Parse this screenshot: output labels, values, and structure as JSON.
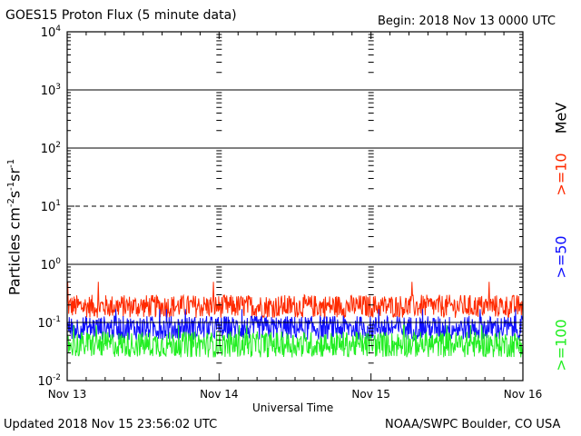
{
  "header": {
    "title": "GOES15 Proton Flux (5 minute data)",
    "begin": "Begin: 2018 Nov 13 0000 UTC"
  },
  "footer": {
    "updated": "Updated 2018 Nov 15 23:56:02 UTC",
    "credit": "NOAA/SWPC Boulder, CO USA"
  },
  "legend": {
    "unit": "MeV",
    "items": [
      {
        "label": ">=10",
        "color": "#ff2a00"
      },
      {
        "label": ">=50",
        "color": "#1010ff"
      },
      {
        "label": ">=100",
        "color": "#22ee22"
      }
    ]
  },
  "chart_data": {
    "type": "line",
    "title": "GOES15 Proton Flux (5 minute data)",
    "xlabel": "Universal Time",
    "ylabel": "Particles cm-2s-1sr-1",
    "yscale": "log",
    "ylim": [
      0.01,
      10000
    ],
    "yticks": [
      {
        "base": "10",
        "exp": "-2"
      },
      {
        "base": "10",
        "exp": "-1"
      },
      {
        "base": "10",
        "exp": "0"
      },
      {
        "base": "10",
        "exp": "1"
      },
      {
        "base": "10",
        "exp": "2"
      },
      {
        "base": "10",
        "exp": "3"
      },
      {
        "base": "10",
        "exp": "4"
      }
    ],
    "xticks": [
      "Nov 13",
      "Nov 14",
      "Nov 15",
      "Nov 16"
    ],
    "xlim_days": [
      13,
      16
    ],
    "threshold_lines": [
      {
        "value": 1000,
        "style": "solid"
      },
      {
        "value": 100,
        "style": "solid"
      },
      {
        "value": 10,
        "style": "dashed"
      },
      {
        "value": 1,
        "style": "solid"
      },
      {
        "value": 0.1,
        "style": "solid"
      }
    ],
    "series": [
      {
        "name": ">=10",
        "color": "#ff2a00",
        "typical_range": [
          0.12,
          0.3
        ],
        "peak": 0.5
      },
      {
        "name": ">=50",
        "color": "#1010ff",
        "typical_range": [
          0.05,
          0.13
        ],
        "peak": 0.17
      },
      {
        "name": ">=100",
        "color": "#22ee22",
        "typical_range": [
          0.025,
          0.07
        ],
        "peak": 0.09
      }
    ],
    "grid": false
  }
}
